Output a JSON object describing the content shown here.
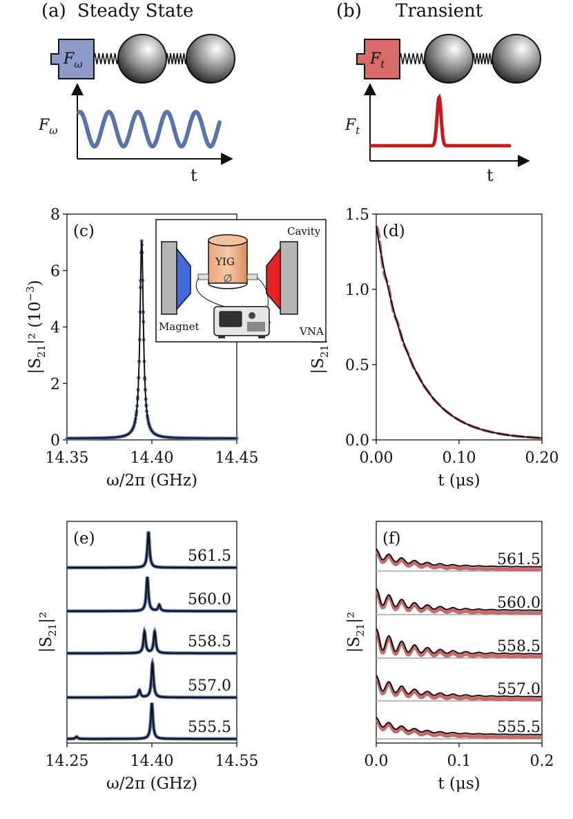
{
  "colors": {
    "blue": "#5a73ad",
    "blue_fill": "#8e9bc8",
    "red": "#c8181c",
    "red_light": "#c96a6a",
    "red_fill": "#d96a6a",
    "black": "#111111",
    "gray": "#bbbbbb"
  },
  "panel_a": {
    "label": "(a)",
    "title": "Steady State",
    "force": "F",
    "force_sub": "ω",
    "time": "t"
  },
  "panel_b": {
    "label": "(b)",
    "title": "Transient",
    "force": "F",
    "force_sub": "t",
    "time": "t"
  },
  "chart_data": [
    {
      "id": "c",
      "type": "line",
      "label": "(c)",
      "xlabel": "ω/2π (GHz)",
      "ylabel_base": "|S",
      "ylabel_sub": "21",
      "ylabel_tail": "|² (10",
      "ylabel_exp": "−3",
      "ylabel_close": ")",
      "xlim": [
        14.35,
        14.45
      ],
      "ylim": [
        0,
        8
      ],
      "xticks": [
        14.35,
        14.4,
        14.45
      ],
      "xtick_labels": [
        "14.35",
        "14.40",
        "14.45"
      ],
      "yticks": [
        0,
        2,
        4,
        6,
        8
      ],
      "ytick_labels": [
        "0",
        "2",
        "4",
        "6",
        "8"
      ],
      "series": [
        {
          "name": "data",
          "style": "markers",
          "color": "blue",
          "lorentzian": {
            "center": 14.394,
            "halfwidth": 0.0012,
            "peak": 7.0
          }
        },
        {
          "name": "fit",
          "style": "line",
          "color": "black",
          "lorentzian": {
            "center": 14.394,
            "halfwidth": 0.0012,
            "peak": 7.0
          }
        }
      ],
      "inset": {
        "cavity": "Cavity",
        "yig": "YIG",
        "magnet": "Magnet",
        "vna": "VNA"
      }
    },
    {
      "id": "d",
      "type": "line",
      "label": "(d)",
      "xlabel": "t (μs)",
      "ylabel_base": "|S",
      "ylabel_sub": "21",
      "ylabel_tail": "|² (10",
      "ylabel_exp": "−6",
      "ylabel_close": ")",
      "xlim": [
        0,
        0.2
      ],
      "ylim": [
        0,
        1.5
      ],
      "xticks": [
        0,
        0.1,
        0.2
      ],
      "xtick_labels": [
        "0.00",
        "0.10",
        "0.20"
      ],
      "yticks": [
        0,
        0.5,
        1.0,
        1.5
      ],
      "ytick_labels": [
        "0.0",
        "0.5",
        "1.0",
        "1.5"
      ],
      "series": [
        {
          "name": "data",
          "style": "thick",
          "color": "red_light",
          "decay": {
            "amp": 1.42,
            "tau": 0.042
          }
        },
        {
          "name": "fit",
          "style": "line",
          "color": "black",
          "decay": {
            "amp": 1.42,
            "tau": 0.042
          }
        }
      ]
    },
    {
      "id": "e",
      "type": "line",
      "label": "(e)",
      "xlabel": "ω/2π (GHz)",
      "ylabel_base": "|S",
      "ylabel_sub": "21",
      "ylabel_tail": "|²",
      "xlim": [
        14.25,
        14.55
      ],
      "xticks": [
        14.25,
        14.4,
        14.55
      ],
      "xtick_labels": [
        "14.25",
        "14.40",
        "14.55"
      ],
      "traces": [
        {
          "label": "561.5",
          "peaks": [
            {
              "f": 14.394,
              "h": 1.0
            }
          ]
        },
        {
          "label": "560.0",
          "peaks": [
            {
              "f": 14.392,
              "h": 0.95
            },
            {
              "f": 14.413,
              "h": 0.17
            }
          ]
        },
        {
          "label": "558.5",
          "peaks": [
            {
              "f": 14.387,
              "h": 0.6
            },
            {
              "f": 14.405,
              "h": 0.6
            }
          ]
        },
        {
          "label": "557.0",
          "peaks": [
            {
              "f": 14.378,
              "h": 0.2
            },
            {
              "f": 14.401,
              "h": 0.95
            }
          ]
        },
        {
          "label": "555.5",
          "peaks": [
            {
              "f": 14.267,
              "h": 0.06
            },
            {
              "f": 14.4,
              "h": 1.0
            }
          ]
        }
      ]
    },
    {
      "id": "f",
      "type": "line",
      "label": "(f)",
      "xlabel": "t (μs)",
      "ylabel_base": "|S",
      "ylabel_sub": "21",
      "ylabel_tail": "|²",
      "xlim": [
        0,
        0.2
      ],
      "xticks": [
        0,
        0.1,
        0.2
      ],
      "xtick_labels": [
        "0.0",
        "0.1",
        "0.2"
      ],
      "traces": [
        {
          "label": "561.5",
          "amp": 0.8,
          "mod": 0.35
        },
        {
          "label": "560.0",
          "amp": 0.85,
          "mod": 0.55
        },
        {
          "label": "558.5",
          "amp": 0.9,
          "mod": 0.7
        },
        {
          "label": "557.0",
          "amp": 0.85,
          "mod": 0.5
        },
        {
          "label": "555.5",
          "amp": 0.8,
          "mod": 0.3
        }
      ]
    }
  ]
}
